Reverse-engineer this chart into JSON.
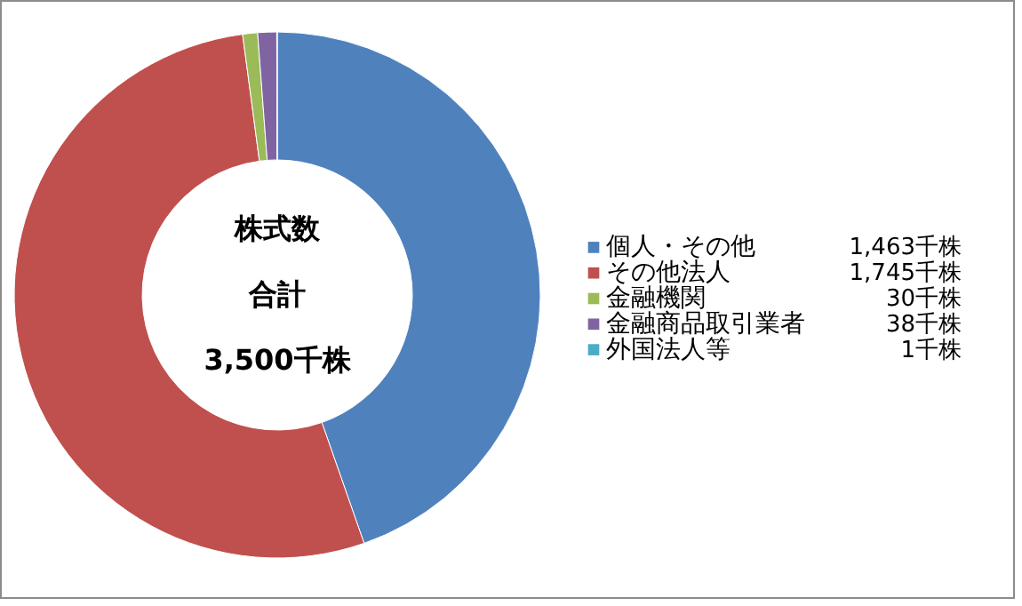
{
  "chart_data": {
    "type": "donut",
    "categories": [
      "個人・その他",
      "その他法人",
      "金融機関",
      "金融商品取引業者",
      "外国法人等"
    ],
    "values": [
      1463,
      1745,
      30,
      38,
      1
    ],
    "value_labels": [
      "1,463千株",
      "1,745千株",
      "30千株",
      "38千株",
      "1千株"
    ],
    "colors": [
      "#4f81bd",
      "#c0504d",
      "#9bbb59",
      "#8064a2",
      "#4bacc6"
    ],
    "annotations": [
      "株式数",
      "合計",
      "3,500千株"
    ],
    "legend": "right"
  }
}
